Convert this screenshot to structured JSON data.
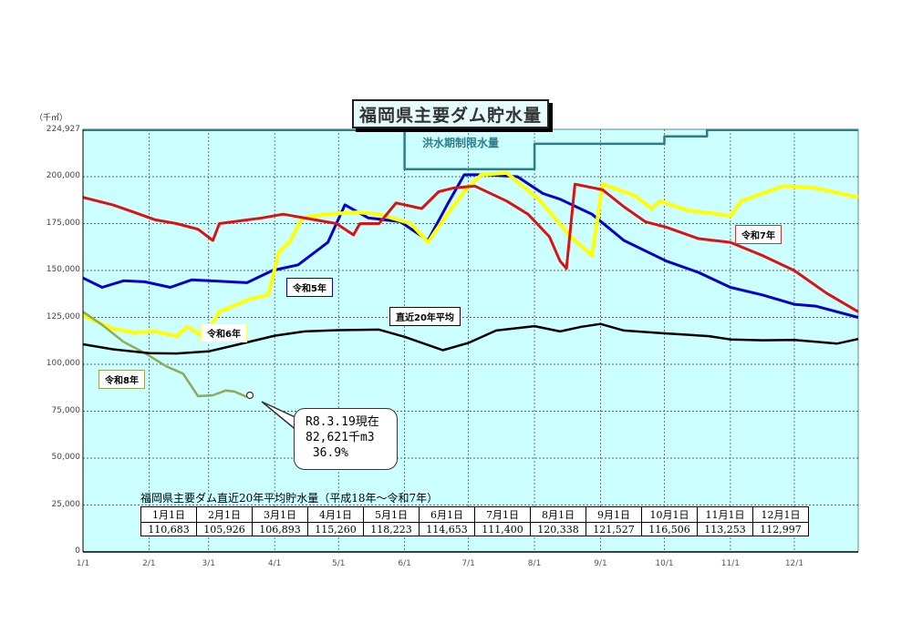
{
  "chart_data": {
    "type": "line",
    "title": "福岡県主要ダム貯水量",
    "ylabel": "（千㎥）",
    "ylim": [
      0,
      224927
    ],
    "yticks": [
      0,
      25000,
      50000,
      75000,
      100000,
      125000,
      150000,
      175000,
      200000,
      224927
    ],
    "ytick_labels": [
      "0",
      "25,000",
      "50,000",
      "75,000",
      "100,000",
      "125,000",
      "150,000",
      "175,000",
      "200,000",
      "224,927"
    ],
    "xticks": [
      "1/1",
      "2/1",
      "3/1",
      "4/1",
      "5/1",
      "6/1",
      "7/1",
      "8/1",
      "9/1",
      "10/1",
      "11/1",
      "12/1"
    ],
    "grid": true,
    "x_unit": "day_of_year",
    "series": [
      {
        "name": "令和5年",
        "color": "#0000cc",
        "points": [
          [
            1,
            146000
          ],
          [
            10,
            141000
          ],
          [
            20,
            144500
          ],
          [
            30,
            144000
          ],
          [
            42,
            141000
          ],
          [
            52,
            145000
          ],
          [
            70,
            144000
          ],
          [
            78,
            143500
          ],
          [
            90,
            150000
          ],
          [
            102,
            153000
          ],
          [
            116,
            165000
          ],
          [
            124,
            185000
          ],
          [
            135,
            178000
          ],
          [
            150,
            176000
          ],
          [
            163,
            166000
          ],
          [
            172,
            185000
          ],
          [
            180,
            201000
          ],
          [
            190,
            201000
          ],
          [
            205,
            200000
          ],
          [
            217,
            191000
          ],
          [
            225,
            188000
          ],
          [
            240,
            180000
          ],
          [
            255,
            166000
          ],
          [
            275,
            155000
          ],
          [
            290,
            149000
          ],
          [
            305,
            141000
          ],
          [
            320,
            137000
          ],
          [
            335,
            132000
          ],
          [
            345,
            131000
          ],
          [
            365,
            125000
          ]
        ]
      },
      {
        "name": "令和6年",
        "color": "#ffff00",
        "points": [
          [
            1,
            126000
          ],
          [
            15,
            119000
          ],
          [
            25,
            117000
          ],
          [
            35,
            117500
          ],
          [
            45,
            115000
          ],
          [
            50,
            120000
          ],
          [
            58,
            114500
          ],
          [
            65,
            128000
          ],
          [
            80,
            135000
          ],
          [
            88,
            137000
          ],
          [
            93,
            160000
          ],
          [
            98,
            165000
          ],
          [
            104,
            178000
          ],
          [
            115,
            180000
          ],
          [
            130,
            181000
          ],
          [
            140,
            180000
          ],
          [
            155,
            175000
          ],
          [
            163,
            165000
          ],
          [
            172,
            180000
          ],
          [
            180,
            192000
          ],
          [
            188,
            201000
          ],
          [
            200,
            202000
          ],
          [
            215,
            188000
          ],
          [
            230,
            168000
          ],
          [
            240,
            158000
          ],
          [
            245,
            196000
          ],
          [
            260,
            190000
          ],
          [
            268,
            183000
          ],
          [
            272,
            187000
          ],
          [
            285,
            182000
          ],
          [
            300,
            180000
          ],
          [
            305,
            179000
          ],
          [
            310,
            187000
          ],
          [
            330,
            195000
          ],
          [
            345,
            194000
          ],
          [
            365,
            189000
          ]
        ]
      },
      {
        "name": "令和7年",
        "color": "#dd1111",
        "points": [
          [
            1,
            189000
          ],
          [
            15,
            185000
          ],
          [
            25,
            181000
          ],
          [
            35,
            177000
          ],
          [
            45,
            175000
          ],
          [
            55,
            172000
          ],
          [
            62,
            166000
          ],
          [
            65,
            175000
          ],
          [
            75,
            176500
          ],
          [
            85,
            178000
          ],
          [
            95,
            180000
          ],
          [
            110,
            177000
          ],
          [
            120,
            175000
          ],
          [
            128,
            169000
          ],
          [
            131,
            175000
          ],
          [
            140,
            175000
          ],
          [
            148,
            186000
          ],
          [
            160,
            183000
          ],
          [
            168,
            192000
          ],
          [
            175,
            194000
          ],
          [
            185,
            195000
          ],
          [
            200,
            187000
          ],
          [
            210,
            180000
          ],
          [
            220,
            168000
          ],
          [
            225,
            155000
          ],
          [
            228,
            151000
          ],
          [
            232,
            196000
          ],
          [
            245,
            193000
          ],
          [
            255,
            184000
          ],
          [
            265,
            176000
          ],
          [
            275,
            173000
          ],
          [
            290,
            167000
          ],
          [
            305,
            165000
          ],
          [
            320,
            158000
          ],
          [
            335,
            150000
          ],
          [
            350,
            138000
          ],
          [
            365,
            128000
          ]
        ]
      },
      {
        "name": "令和8年",
        "color": "#8faa55",
        "points": [
          [
            1,
            128000
          ],
          [
            10,
            121000
          ],
          [
            20,
            112000
          ],
          [
            30,
            106000
          ],
          [
            40,
            99000
          ],
          [
            48,
            95000
          ],
          [
            55,
            83000
          ],
          [
            62,
            83500
          ],
          [
            68,
            86000
          ],
          [
            72,
            85500
          ],
          [
            78,
            82621
          ]
        ]
      },
      {
        "name": "直近20年平均",
        "color": "#000000",
        "points": [
          [
            1,
            110683
          ],
          [
            15,
            108000
          ],
          [
            32,
            105926
          ],
          [
            45,
            105800
          ],
          [
            60,
            106893
          ],
          [
            70,
            109500
          ],
          [
            91,
            115260
          ],
          [
            105,
            117500
          ],
          [
            121,
            118223
          ],
          [
            140,
            118500
          ],
          [
            152,
            114653
          ],
          [
            170,
            107500
          ],
          [
            182,
            111400
          ],
          [
            195,
            118000
          ],
          [
            213,
            120338
          ],
          [
            225,
            117500
          ],
          [
            235,
            120000
          ],
          [
            244,
            121527
          ],
          [
            255,
            118000
          ],
          [
            274,
            116506
          ],
          [
            295,
            115000
          ],
          [
            305,
            113253
          ],
          [
            320,
            112800
          ],
          [
            335,
            112997
          ],
          [
            355,
            111000
          ],
          [
            365,
            113500
          ]
        ]
      },
      {
        "name": "洪水期制限水量",
        "color": "#2f7b8a",
        "points": [
          [
            1,
            224927
          ],
          [
            152,
            224927
          ],
          [
            152,
            204000
          ],
          [
            213,
            204000
          ],
          [
            213,
            217500
          ],
          [
            274,
            217500
          ],
          [
            274,
            221500
          ],
          [
            294,
            221500
          ],
          [
            294,
            224927
          ],
          [
            365,
            224927
          ]
        ]
      }
    ],
    "annotations": [
      {
        "text": "R8.3.19現在 82,621千m3 36.9%",
        "x_day": 78,
        "y": 82621
      }
    ],
    "average_table": {
      "title": "福岡県主要ダム直近20年平均貯水量（平成18年～令和7年）",
      "headers": [
        "1月1日",
        "2月1日",
        "3月1日",
        "4月1日",
        "5月1日",
        "6月1日",
        "7月1日",
        "8月1日",
        "9月1日",
        "10月1日",
        "11月1日",
        "12月1日"
      ],
      "values": [
        "110,683",
        "105,926",
        "106,893",
        "115,260",
        "118,223",
        "114,653",
        "111,400",
        "120,338",
        "121,527",
        "116,506",
        "113,253",
        "112,997"
      ]
    }
  },
  "labels": {
    "title": "福岡県主要ダム貯水量",
    "unit": "（千㎥）",
    "flood": "洪水期制限水量",
    "r5": "令和5年",
    "r6": "令和6年",
    "r7": "令和7年",
    "r8": "令和8年",
    "avg": "直近20年平均",
    "callout_line1": "R8.3.19現在",
    "callout_line2": "82,621千m3",
    "callout_line3": " 36.9%"
  }
}
